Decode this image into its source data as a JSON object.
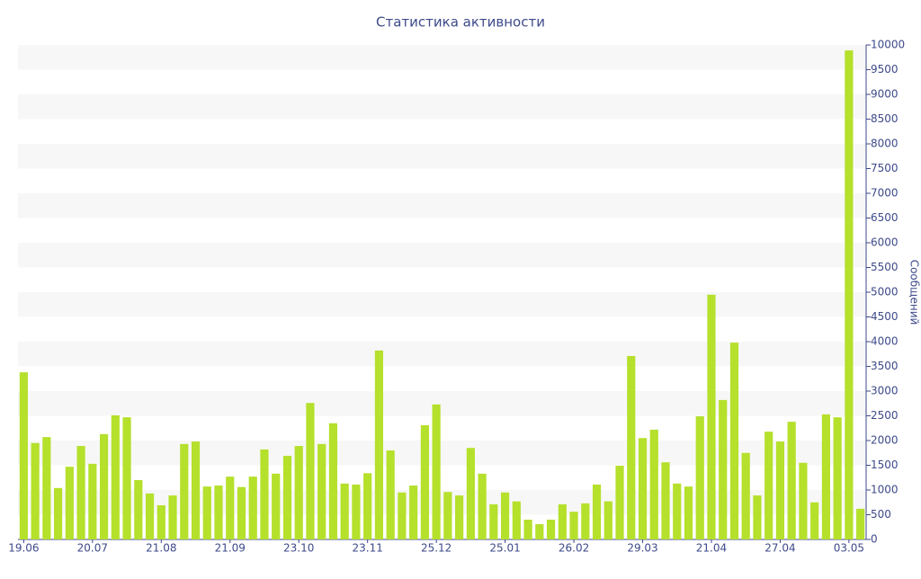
{
  "chart_data": {
    "type": "bar",
    "title": "Статистика активности",
    "y_label": "Сообщений",
    "categories": [
      "19.06",
      null,
      null,
      null,
      null,
      null,
      "20.07",
      null,
      null,
      null,
      null,
      null,
      "21.08",
      null,
      null,
      null,
      null,
      null,
      "21.09",
      null,
      null,
      null,
      null,
      null,
      "23.10",
      null,
      null,
      null,
      null,
      null,
      "23.11",
      null,
      null,
      null,
      null,
      null,
      "25.12",
      null,
      null,
      null,
      null,
      null,
      "25.01",
      null,
      null,
      null,
      null,
      null,
      "26.02",
      null,
      null,
      null,
      null,
      null,
      "29.03",
      null,
      null,
      null,
      null,
      null,
      "21.04",
      null,
      null,
      null,
      null,
      null,
      "27.04",
      null,
      null,
      null,
      null,
      null,
      "03.05",
      null
    ],
    "values": [
      3380,
      1950,
      2070,
      1040,
      1470,
      1890,
      1530,
      2130,
      2510,
      2470,
      1200,
      930,
      690,
      890,
      1930,
      1980,
      1070,
      1090,
      1270,
      1060,
      1270,
      1820,
      1330,
      1690,
      1890,
      2760,
      1930,
      2350,
      1130,
      1110,
      1340,
      3820,
      1800,
      950,
      1090,
      2310,
      2730,
      960,
      890,
      1850,
      1330,
      710,
      950,
      770,
      400,
      310,
      400,
      710,
      560,
      730,
      1110,
      770,
      1490,
      3710,
      2050,
      2220,
      1560,
      1130,
      1070,
      2490,
      4950,
      2820,
      3980,
      1750,
      890,
      2180,
      1980,
      2380,
      1550,
      750,
      2530,
      2470,
      9890,
      620
    ],
    "color": "#b5e02b",
    "ylim": [
      0,
      10000
    ],
    "yticks": [
      0,
      500,
      1000,
      1500,
      2000,
      2500,
      3000,
      3500,
      4000,
      4500,
      5000,
      5500,
      6000,
      6500,
      7000,
      7500,
      8000,
      8500,
      9000,
      9500,
      10000
    ],
    "grid_bands": true
  }
}
